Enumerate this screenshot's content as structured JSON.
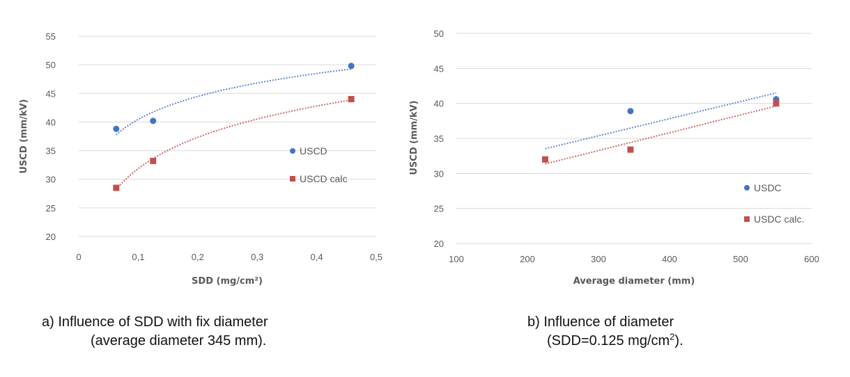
{
  "chart_data": [
    {
      "type": "scatter",
      "xlabel": "SDD (mg/cm²)",
      "ylabel": "USCD (mm/kV)",
      "xlim": [
        0,
        0.5
      ],
      "ylim": [
        20,
        55
      ],
      "x_ticks": [
        0,
        0.1,
        0.2,
        0.3,
        0.4,
        0.5
      ],
      "x_tick_labels": [
        "0",
        "0,1",
        "0,2",
        "0,3",
        "0,4",
        "0,5"
      ],
      "y_ticks": [
        20,
        25,
        30,
        35,
        40,
        45,
        50,
        55
      ],
      "grid": "horizontal",
      "legend_position": "right",
      "trendline": "logarithmic",
      "series": [
        {
          "name": "USCD",
          "marker": "circle",
          "color": "#4472C4",
          "x": [
            0.063,
            0.125,
            0.458
          ],
          "y": [
            38.8,
            40.2,
            49.8
          ]
        },
        {
          "name": "USCD calc",
          "marker": "square",
          "color": "#C0504D",
          "x": [
            0.063,
            0.125,
            0.458
          ],
          "y": [
            28.5,
            33.2,
            44.0
          ]
        }
      ]
    },
    {
      "type": "scatter",
      "xlabel": "Average diameter (mm)",
      "ylabel": "USCD (mm/kV)",
      "xlim": [
        100,
        600
      ],
      "ylim": [
        20,
        50
      ],
      "x_ticks": [
        100,
        200,
        300,
        400,
        500,
        600
      ],
      "x_tick_labels": [
        "100",
        "200",
        "300",
        "400",
        "500",
        "600"
      ],
      "y_ticks": [
        20,
        25,
        30,
        35,
        40,
        45,
        50
      ],
      "grid": "horizontal",
      "legend_position": "right",
      "trendline": "linear",
      "series": [
        {
          "name": "USDC",
          "marker": "circle",
          "color": "#4472C4",
          "x": [
            225,
            345,
            550
          ],
          "y": [
            32.0,
            38.9,
            40.6
          ]
        },
        {
          "name": "USDC calc.",
          "marker": "square",
          "color": "#C0504D",
          "x": [
            225,
            345,
            550
          ],
          "y": [
            32.0,
            33.4,
            40.0
          ]
        }
      ]
    }
  ],
  "captions": {
    "a_line1": "a)   Influence of SDD with fix diameter",
    "a_line2": "(average diameter 345 mm).",
    "b_line1": "b) Influence of diameter",
    "b_line2_pre": "(SDD=0.125 mg/cm",
    "b_line2_sup": "2",
    "b_line2_post": ")."
  }
}
